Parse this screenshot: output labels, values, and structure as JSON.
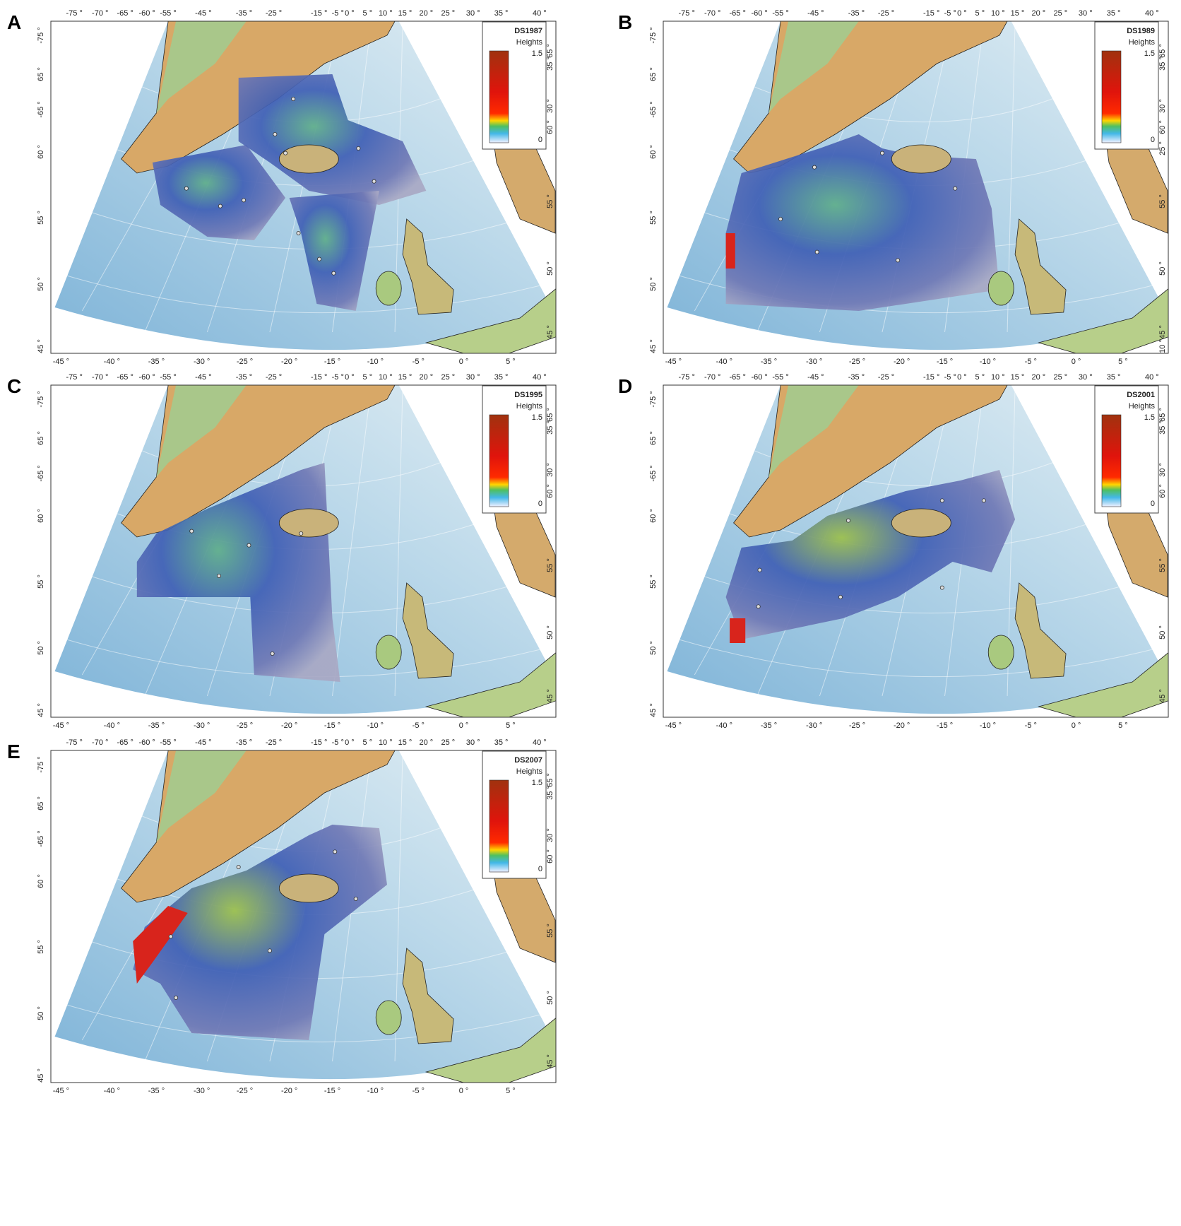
{
  "panels": [
    {
      "letter": "A",
      "legend_title": "DS1987"
    },
    {
      "letter": "B",
      "legend_title": "DS1989",
      "right_extra": [
        "25 °",
        "10 °"
      ]
    },
    {
      "letter": "C",
      "legend_title": "DS1995"
    },
    {
      "letter": "D",
      "legend_title": "DS2001"
    },
    {
      "letter": "E",
      "legend_title": "DS2007"
    }
  ],
  "legend": {
    "label": "Heights",
    "max": "1.5",
    "min": "0"
  },
  "axes": {
    "top": [
      "-75 °",
      "-70 °",
      "-65 °",
      "-60 °",
      "-55 °",
      "-45 °",
      "-35 °",
      "-25 °",
      "-15 °",
      "-5 °",
      "0 °",
      "5 °",
      "10 °",
      "15 °",
      "20 °",
      "25 °",
      "30 °",
      "35 °",
      "40 °"
    ],
    "bottom": [
      "-45 °",
      "-40 °",
      "-35 °",
      "-30 °",
      "-25 °",
      "-20 °",
      "-15 °",
      "-10 °",
      "-5 °",
      "0 °",
      "5 °"
    ],
    "left": [
      "-75 °",
      "65 °",
      "-65 °",
      "60 °",
      "55 °",
      "50 °",
      "45 °"
    ],
    "right": [
      "65 °",
      "35 °",
      "30 °",
      "60 °",
      "55 °",
      "50 °",
      "45 °"
    ]
  }
}
